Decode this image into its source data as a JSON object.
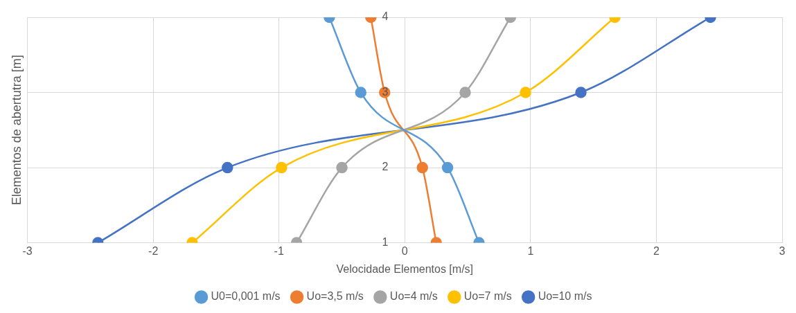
{
  "chart_data": {
    "type": "line",
    "xlabel": "Velocidade Elementos [m/s]",
    "ylabel": "Elementos de abertutra [m]",
    "xlim": [
      -3,
      3
    ],
    "xticks": [
      -3,
      -2,
      -1,
      0,
      1,
      2,
      3
    ],
    "ylim": [
      1,
      4
    ],
    "yticks": [
      1,
      2,
      3,
      4
    ],
    "grid": true,
    "legend": "bottom",
    "marker": "circle",
    "line_style": "solid",
    "series": [
      {
        "name": "U0=0,001 m/s",
        "color": "#5b9bd5",
        "x": [
          0.59,
          0.34,
          -0.35,
          -0.6
        ],
        "values": [
          1,
          2,
          3,
          4
        ]
      },
      {
        "name": "Uo=3,5 m/s",
        "color": "#ed7d31",
        "x": [
          0.25,
          0.14,
          -0.16,
          -0.27
        ],
        "values": [
          1,
          2,
          3,
          4
        ]
      },
      {
        "name": "Uo=4 m/s",
        "color": "#a5a5a5",
        "x": [
          -0.86,
          -0.5,
          0.48,
          0.84
        ],
        "values": [
          1,
          2,
          3,
          4
        ]
      },
      {
        "name": "Uo=7 m/s",
        "color": "#ffc000",
        "x": [
          -1.69,
          -0.98,
          0.96,
          1.67
        ],
        "values": [
          1,
          2,
          3,
          4
        ]
      },
      {
        "name": "Uo=10 m/s",
        "color": "#4472c4",
        "x": [
          -2.44,
          -1.41,
          1.4,
          2.43
        ],
        "values": [
          1,
          2,
          3,
          4
        ]
      }
    ]
  }
}
